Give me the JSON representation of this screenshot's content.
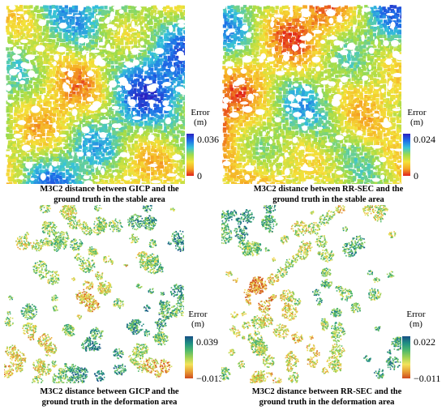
{
  "colormaps": {
    "stable": [
      "#e0201b",
      "#f5a623",
      "#f4e23a",
      "#9fdc4a",
      "#36c3d9",
      "#1d6ee8",
      "#2a22c2"
    ],
    "deformation": [
      "#cf4b1f",
      "#e8a135",
      "#f2e35a",
      "#9fd255",
      "#4db86d",
      "#1f8f83",
      "#164f84"
    ]
  },
  "panels": [
    {
      "id": "gicp-stable",
      "style": "dense",
      "colormap": "stable",
      "bias": 0.0,
      "colorbar": {
        "title_line1": "Error",
        "title_line2": "(m)",
        "max": "0.036",
        "min": "0"
      },
      "caption": {
        "line1": "M3C2 distance between GICP and the",
        "line2": "ground truth in the stable area"
      }
    },
    {
      "id": "rrsec-stable",
      "style": "dense",
      "colormap": "stable",
      "bias": -0.12,
      "colorbar": {
        "title_line1": "Error",
        "title_line2": "(m)",
        "max": "0.024",
        "min": "0"
      },
      "caption": {
        "line1": "M3C2 distance between RR-SEC and the",
        "line2": "ground truth in the stable area"
      }
    },
    {
      "id": "gicp-deformation",
      "style": "sparse",
      "colormap": "deformation",
      "bias": 0.05,
      "colorbar": {
        "title_line1": "Error",
        "title_line2": "(m)",
        "max": "0.039",
        "min": "−0.013"
      },
      "caption": {
        "line1": "M3C2 distance between GICP and the",
        "line2": "ground truth in the deformation area"
      }
    },
    {
      "id": "rrsec-deformation",
      "style": "sparse",
      "colormap": "deformation",
      "bias": 0.0,
      "colorbar": {
        "title_line1": "Error",
        "title_line2": "(m)",
        "max": "0.022",
        "min": "−0.011"
      },
      "caption": {
        "line1": "M3C2 distance between RR-SEC and the",
        "line2": "ground truth in the deformation area"
      }
    }
  ]
}
